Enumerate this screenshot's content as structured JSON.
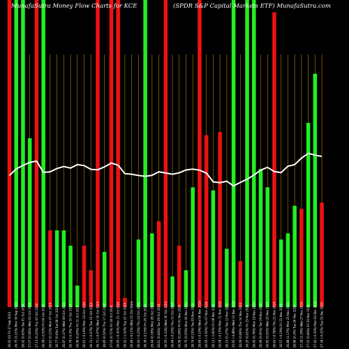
{
  "header": {
    "left": "MunafaSutra  Money Flow  Charts for KCE",
    "right": "(SPDR S&P Capital Markets ETF) MunafaSutra.com"
  },
  "colors": {
    "background": "#000000",
    "up_bar": "#22ee22",
    "down_bar": "#ee1111",
    "price_line": "#ffffff",
    "grid": "#b8860b"
  },
  "chart_data": {
    "type": "bar",
    "ylim": [
      0,
      100
    ],
    "grid": "vertical",
    "categories": [
      "Fri 27 Sep 2024",
      "Mon 30 Sep 2024",
      "Tue 01 Oct 2024",
      "Wed 02 Oct 2024",
      "Thu 03 Oct 2024",
      "Fri 04 Oct 2024",
      "Mon 07 Oct 2024",
      "Tue 08 Oct 2024",
      "Wed 09 Oct 2024",
      "Thu 10 Oct 2024",
      "Fri 11 Oct 2024",
      "Mon 14 Oct 2024",
      "Tue 15 Oct 2024",
      "Wed 16 Oct 2024",
      "Thu 17 Oct 2024",
      "Fri 18 Oct 2024",
      "Mon 21 Oct 2024",
      "Tue 22 Oct 2024",
      "Wed 23 Oct 2024",
      "Thu 24 Oct 2024",
      "Fri 25 Oct 2024",
      "Mon 28 Oct 2024",
      "Tue 29 Oct 2024",
      "Wed 30 Oct 2024",
      "Thu 31 Oct 2024",
      "Fri 01 Nov 2024",
      "Mon 04 Nov 2024",
      "Tue 05 Nov 2024",
      "Wed 06 Nov 2024",
      "Thu 07 Nov 2024",
      "Fri 08 Nov 2024",
      "Mon 11 Nov 2024",
      "Tue 12 Nov 2024",
      "Wed 13 Nov 2024",
      "Thu 14 Nov 2024",
      "Fri 15 Nov 2024",
      "Mon 18 Nov 2024",
      "Tue 19 Nov 2024",
      "Wed 20 Nov 2024",
      "Thu 21 Nov 2024",
      "Fri 22 Nov 2024",
      "Mon 25 Nov 2024",
      "Tue 26 Nov 2024",
      "Wed 27 Nov 2024",
      "Fri 29 Nov 2024",
      "Mon 02 Dec 2024",
      "Tue 03 Dec 2024"
    ],
    "tick_labels": [
      "26.43 (0)",
      "26.75 (1.21%)",
      "26.92 (0.63%)",
      "27.07 (0.56%)",
      "27.13 (0.22%)",
      "26.58 (-2.03%)",
      "26.61 (0.11%)",
      "26.77 (0.6%)",
      "26.87 (0.37%)",
      "26.79 (-0.3%)",
      "26.96 (0.63%)",
      "26.91 (-0.19%)",
      "26.73 (-0.67%)",
      "26.71 (-0.07%)",
      "26.85 (0.52%)",
      "27.04 (0.71%)",
      "26.93 (-0.41%)",
      "26.52 (-1.52%)",
      "26.49 (-0.11%)",
      "26.43 (-0.23%)",
      "26.39 (-0.15%)",
      "26.44 (0.19%)",
      "26.61 (0.64%)",
      "26.55 (-0.23%)",
      "26.49 (-0.23%)",
      "26.56 (0.26%)",
      "26.70 (0.53%)",
      "26.74 (0.15%)",
      "26.69 (-0.19%)",
      "26.55 (-0.52%)",
      "26.12 (-1.62%)",
      "26.08 (-0.15%)",
      "26.15 (0.27%)",
      "25.92 (-0.88%)",
      "26.09 (0.66%)",
      "26.25 (0.61%)",
      "26.45 (0.76%)",
      "26.69 (0.91%)",
      "26.83 (0.52%)",
      "26.62 (-0.78%)",
      "26.57 (-0.19%)",
      "26.88 (1.17%)",
      "26.96 (0.3%)",
      "27.28 (1.19%)",
      "27.51 (0.84%)",
      "27.42 (-0.33%)",
      "27.36 (-0.22%)"
    ],
    "series": [
      {
        "direction": [
          "down",
          "up",
          "up",
          "up",
          "down",
          "up",
          "down",
          "up",
          "up",
          "up",
          "up",
          "down",
          "down",
          "down",
          "up",
          "down",
          "down",
          "down",
          "down",
          "up",
          "up",
          "up",
          "down",
          "down",
          "up",
          "down",
          "up",
          "up",
          "down",
          "down",
          "up",
          "down",
          "up",
          "up",
          "down",
          "up",
          "up",
          "up",
          "up",
          "down",
          "up",
          "up",
          "up",
          "down",
          "up",
          "up",
          "down"
        ],
        "flow": [
          100,
          100,
          100,
          55,
          100,
          100,
          25,
          25,
          25,
          20,
          7,
          20,
          12,
          100,
          18,
          100,
          100,
          3,
          0,
          22,
          100,
          24,
          28,
          100,
          10,
          20,
          12,
          39,
          100,
          56,
          38,
          57,
          19,
          100,
          15,
          100,
          100,
          45,
          39,
          96,
          22,
          24,
          33,
          32,
          60,
          76,
          34
        ]
      },
      {
        "price": [
          26.43,
          26.75,
          26.92,
          27.07,
          27.13,
          26.58,
          26.61,
          26.77,
          26.87,
          26.79,
          26.96,
          26.91,
          26.73,
          26.71,
          26.85,
          27.04,
          26.93,
          26.52,
          26.49,
          26.43,
          26.39,
          26.44,
          26.61,
          26.55,
          26.49,
          26.56,
          26.7,
          26.74,
          26.69,
          26.55,
          26.12,
          26.08,
          26.15,
          25.92,
          26.09,
          26.25,
          26.45,
          26.69,
          26.83,
          26.62,
          26.57,
          26.88,
          26.96,
          27.28,
          27.51,
          27.42,
          27.36
        ],
        "ylim": [
          20.0,
          35.0
        ]
      }
    ]
  }
}
